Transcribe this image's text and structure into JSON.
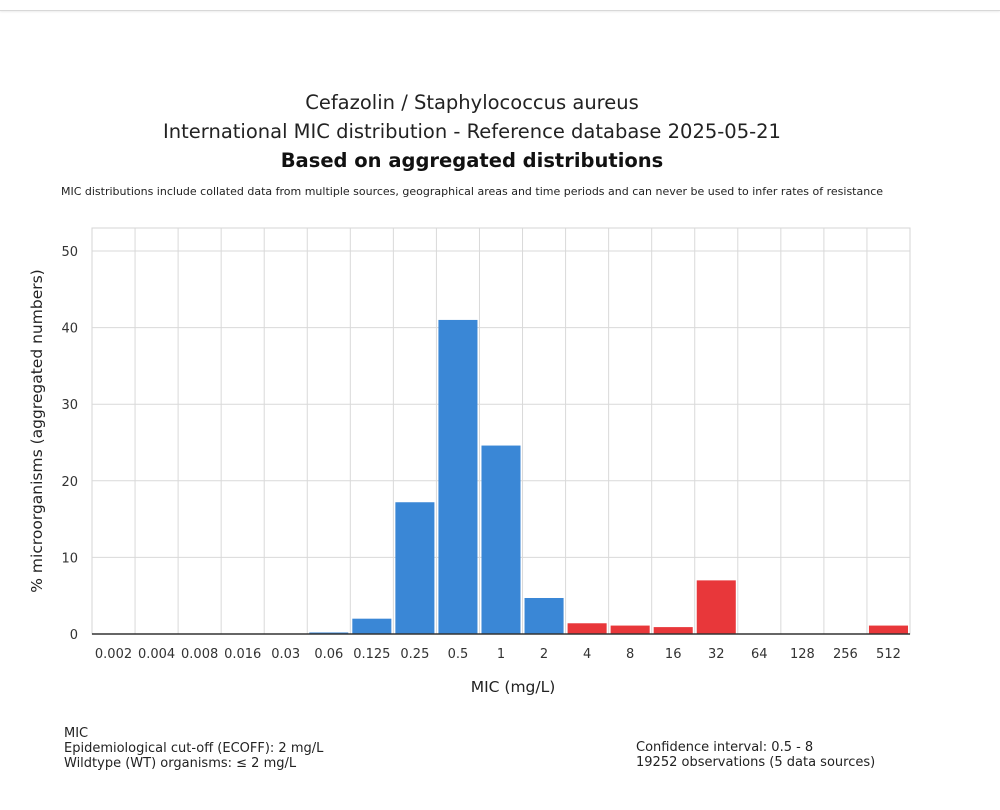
{
  "header": {
    "title_line1": "Cefazolin / Staphylococcus aureus",
    "title_line2": "International MIC distribution - Reference database 2025-05-21",
    "title_bold": "Based on aggregated distributions",
    "disclaimer": "MIC distributions include collated data from multiple sources, geographical areas and time periods and can never be used to infer rates of resistance"
  },
  "chart_data": {
    "type": "bar",
    "xlabel": "MIC (mg/L)",
    "ylabel": "% microorganisms (aggregated numbers)",
    "ylim": [
      0,
      53
    ],
    "yticks": [
      0,
      10,
      20,
      30,
      40,
      50
    ],
    "grid": true,
    "categories": [
      "0.002",
      "0.004",
      "0.008",
      "0.016",
      "0.03",
      "0.06",
      "0.125",
      "0.25",
      "0.5",
      "1",
      "2",
      "4",
      "8",
      "16",
      "32",
      "64",
      "128",
      "256",
      "512"
    ],
    "values": [
      0,
      0,
      0,
      0,
      0,
      0.2,
      2.0,
      17.2,
      41.0,
      24.6,
      4.7,
      1.4,
      1.1,
      0.9,
      7.0,
      0,
      0,
      0,
      1.1
    ],
    "colors": [
      "#3a87d6",
      "#3a87d6",
      "#3a87d6",
      "#3a87d6",
      "#3a87d6",
      "#3a87d6",
      "#3a87d6",
      "#3a87d6",
      "#3a87d6",
      "#3a87d6",
      "#3a87d6",
      "#e8373a",
      "#e8373a",
      "#e8373a",
      "#e8373a",
      "#e8373a",
      "#e8373a",
      "#e8373a",
      "#e8373a"
    ],
    "wildtype_color": "#3a87d6",
    "non_wildtype_color": "#e8373a"
  },
  "footer": {
    "left": [
      "MIC",
      "Epidemiological cut-off (ECOFF): 2 mg/L",
      "Wildtype (WT) organisms: ≤ 2 mg/L"
    ],
    "right": [
      "Confidence interval: 0.5 - 8",
      "19252 observations (5 data sources)"
    ]
  }
}
